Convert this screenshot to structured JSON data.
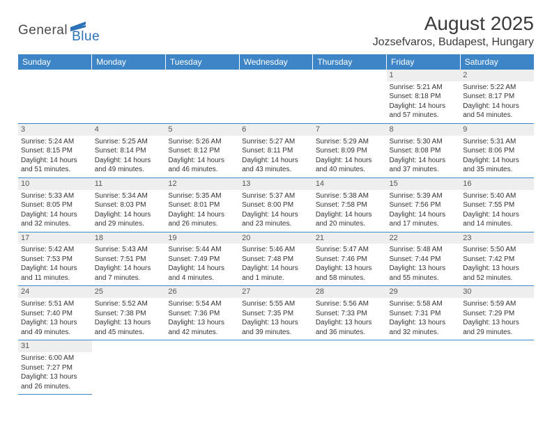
{
  "logo": {
    "text1": "General",
    "text2": "Blue"
  },
  "title": "August 2025",
  "location": "Jozsefvaros, Budapest, Hungary",
  "colors": {
    "header_bg": "#3d85c6",
    "header_text": "#ffffff",
    "daynum_bg": "#eeeeee",
    "cell_border": "#3d85c6",
    "logo_gray": "#4a4a4a",
    "logo_blue": "#2a71b8"
  },
  "day_headers": [
    "Sunday",
    "Monday",
    "Tuesday",
    "Wednesday",
    "Thursday",
    "Friday",
    "Saturday"
  ],
  "weeks": [
    [
      null,
      null,
      null,
      null,
      null,
      {
        "n": "1",
        "sunrise": "5:21 AM",
        "sunset": "8:18 PM",
        "dl1": "14 hours",
        "dl2": "and 57 minutes."
      },
      {
        "n": "2",
        "sunrise": "5:22 AM",
        "sunset": "8:17 PM",
        "dl1": "14 hours",
        "dl2": "and 54 minutes."
      }
    ],
    [
      {
        "n": "3",
        "sunrise": "5:24 AM",
        "sunset": "8:15 PM",
        "dl1": "14 hours",
        "dl2": "and 51 minutes."
      },
      {
        "n": "4",
        "sunrise": "5:25 AM",
        "sunset": "8:14 PM",
        "dl1": "14 hours",
        "dl2": "and 49 minutes."
      },
      {
        "n": "5",
        "sunrise": "5:26 AM",
        "sunset": "8:12 PM",
        "dl1": "14 hours",
        "dl2": "and 46 minutes."
      },
      {
        "n": "6",
        "sunrise": "5:27 AM",
        "sunset": "8:11 PM",
        "dl1": "14 hours",
        "dl2": "and 43 minutes."
      },
      {
        "n": "7",
        "sunrise": "5:29 AM",
        "sunset": "8:09 PM",
        "dl1": "14 hours",
        "dl2": "and 40 minutes."
      },
      {
        "n": "8",
        "sunrise": "5:30 AM",
        "sunset": "8:08 PM",
        "dl1": "14 hours",
        "dl2": "and 37 minutes."
      },
      {
        "n": "9",
        "sunrise": "5:31 AM",
        "sunset": "8:06 PM",
        "dl1": "14 hours",
        "dl2": "and 35 minutes."
      }
    ],
    [
      {
        "n": "10",
        "sunrise": "5:33 AM",
        "sunset": "8:05 PM",
        "dl1": "14 hours",
        "dl2": "and 32 minutes."
      },
      {
        "n": "11",
        "sunrise": "5:34 AM",
        "sunset": "8:03 PM",
        "dl1": "14 hours",
        "dl2": "and 29 minutes."
      },
      {
        "n": "12",
        "sunrise": "5:35 AM",
        "sunset": "8:01 PM",
        "dl1": "14 hours",
        "dl2": "and 26 minutes."
      },
      {
        "n": "13",
        "sunrise": "5:37 AM",
        "sunset": "8:00 PM",
        "dl1": "14 hours",
        "dl2": "and 23 minutes."
      },
      {
        "n": "14",
        "sunrise": "5:38 AM",
        "sunset": "7:58 PM",
        "dl1": "14 hours",
        "dl2": "and 20 minutes."
      },
      {
        "n": "15",
        "sunrise": "5:39 AM",
        "sunset": "7:56 PM",
        "dl1": "14 hours",
        "dl2": "and 17 minutes."
      },
      {
        "n": "16",
        "sunrise": "5:40 AM",
        "sunset": "7:55 PM",
        "dl1": "14 hours",
        "dl2": "and 14 minutes."
      }
    ],
    [
      {
        "n": "17",
        "sunrise": "5:42 AM",
        "sunset": "7:53 PM",
        "dl1": "14 hours",
        "dl2": "and 11 minutes."
      },
      {
        "n": "18",
        "sunrise": "5:43 AM",
        "sunset": "7:51 PM",
        "dl1": "14 hours",
        "dl2": "and 7 minutes."
      },
      {
        "n": "19",
        "sunrise": "5:44 AM",
        "sunset": "7:49 PM",
        "dl1": "14 hours",
        "dl2": "and 4 minutes."
      },
      {
        "n": "20",
        "sunrise": "5:46 AM",
        "sunset": "7:48 PM",
        "dl1": "14 hours",
        "dl2": "and 1 minute."
      },
      {
        "n": "21",
        "sunrise": "5:47 AM",
        "sunset": "7:46 PM",
        "dl1": "13 hours",
        "dl2": "and 58 minutes."
      },
      {
        "n": "22",
        "sunrise": "5:48 AM",
        "sunset": "7:44 PM",
        "dl1": "13 hours",
        "dl2": "and 55 minutes."
      },
      {
        "n": "23",
        "sunrise": "5:50 AM",
        "sunset": "7:42 PM",
        "dl1": "13 hours",
        "dl2": "and 52 minutes."
      }
    ],
    [
      {
        "n": "24",
        "sunrise": "5:51 AM",
        "sunset": "7:40 PM",
        "dl1": "13 hours",
        "dl2": "and 49 minutes."
      },
      {
        "n": "25",
        "sunrise": "5:52 AM",
        "sunset": "7:38 PM",
        "dl1": "13 hours",
        "dl2": "and 45 minutes."
      },
      {
        "n": "26",
        "sunrise": "5:54 AM",
        "sunset": "7:36 PM",
        "dl1": "13 hours",
        "dl2": "and 42 minutes."
      },
      {
        "n": "27",
        "sunrise": "5:55 AM",
        "sunset": "7:35 PM",
        "dl1": "13 hours",
        "dl2": "and 39 minutes."
      },
      {
        "n": "28",
        "sunrise": "5:56 AM",
        "sunset": "7:33 PM",
        "dl1": "13 hours",
        "dl2": "and 36 minutes."
      },
      {
        "n": "29",
        "sunrise": "5:58 AM",
        "sunset": "7:31 PM",
        "dl1": "13 hours",
        "dl2": "and 32 minutes."
      },
      {
        "n": "30",
        "sunrise": "5:59 AM",
        "sunset": "7:29 PM",
        "dl1": "13 hours",
        "dl2": "and 29 minutes."
      }
    ],
    [
      {
        "n": "31",
        "sunrise": "6:00 AM",
        "sunset": "7:27 PM",
        "dl1": "13 hours",
        "dl2": "and 26 minutes."
      },
      null,
      null,
      null,
      null,
      null,
      null
    ]
  ],
  "labels": {
    "sunrise": "Sunrise: ",
    "sunset": "Sunset: ",
    "daylight": "Daylight: "
  }
}
